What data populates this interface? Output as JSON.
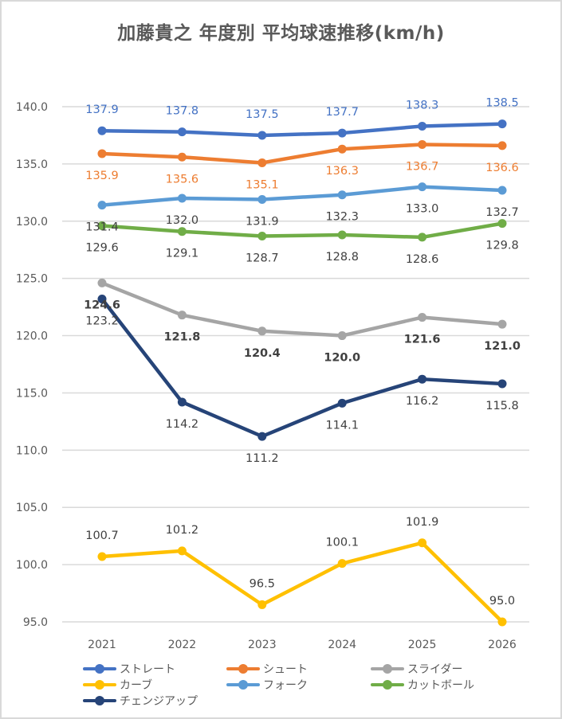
{
  "chart_data": {
    "type": "line",
    "title": "加藤貴之 年度別 平均球速推移(km/h)",
    "xlabel": "",
    "ylabel": "",
    "categories": [
      "2021",
      "2022",
      "2023",
      "2024",
      "2025",
      "2026"
    ],
    "ylim": [
      95.0,
      140.0
    ],
    "yticks": [
      "140.0",
      "135.0",
      "130.0",
      "125.0",
      "120.0",
      "115.0",
      "110.0",
      "105.0",
      "100.0",
      "95.0"
    ],
    "grid": true,
    "legend_position": "bottom",
    "series": [
      {
        "name": "ストレート",
        "color": "#4472c4",
        "label_color": "#4472c4",
        "label_bold": false,
        "label_pos": "above",
        "values": [
          137.9,
          137.8,
          137.5,
          137.7,
          138.3,
          138.5
        ],
        "labels": [
          "137.9",
          "137.8",
          "137.5",
          "137.7",
          "138.3",
          "138.5"
        ]
      },
      {
        "name": "シュート",
        "color": "#ed7d31",
        "label_color": "#ed7d31",
        "label_bold": false,
        "label_pos": "below",
        "values": [
          135.9,
          135.6,
          135.1,
          136.3,
          136.7,
          136.6
        ],
        "labels": [
          "135.9",
          "135.6",
          "135.1",
          "136.3",
          "136.7",
          "136.6"
        ]
      },
      {
        "name": "スライダー",
        "color": "#a5a5a5",
        "label_color": "#404040",
        "label_bold": true,
        "label_pos": "below",
        "values": [
          124.6,
          121.8,
          120.4,
          120.0,
          121.6,
          121.0
        ],
        "labels": [
          "124.6",
          "121.8",
          "120.4",
          "120.0",
          "121.6",
          "121.0"
        ]
      },
      {
        "name": "カーブ",
        "color": "#ffc000",
        "label_color": "#404040",
        "label_bold": false,
        "label_pos": "above",
        "values": [
          100.7,
          101.2,
          96.5,
          100.1,
          101.9,
          95.0
        ],
        "labels": [
          "100.7",
          "101.2",
          "96.5",
          "100.1",
          "101.9",
          "95.0"
        ]
      },
      {
        "name": "フォーク",
        "color": "#5b9bd5",
        "label_color": "#404040",
        "label_bold": false,
        "label_pos": "below",
        "values": [
          131.4,
          132.0,
          131.9,
          132.3,
          133.0,
          132.7
        ],
        "labels": [
          "131.4",
          "132.0",
          "131.9",
          "132.3",
          "133.0",
          "132.7"
        ]
      },
      {
        "name": "カットボール",
        "color": "#70ad47",
        "label_color": "#404040",
        "label_bold": false,
        "label_pos": "below",
        "values": [
          129.6,
          129.1,
          128.7,
          128.8,
          128.6,
          129.8
        ],
        "labels": [
          "129.6",
          "129.1",
          "128.7",
          "128.8",
          "128.6",
          "129.8"
        ]
      },
      {
        "name": "チェンジアップ",
        "color": "#264478",
        "label_color": "#404040",
        "label_bold": false,
        "label_pos": "below",
        "values": [
          123.2,
          114.2,
          111.2,
          114.1,
          116.2,
          115.8
        ],
        "labels": [
          "123.2",
          "114.2",
          "111.2",
          "114.1",
          "116.2",
          "115.8"
        ]
      }
    ]
  }
}
